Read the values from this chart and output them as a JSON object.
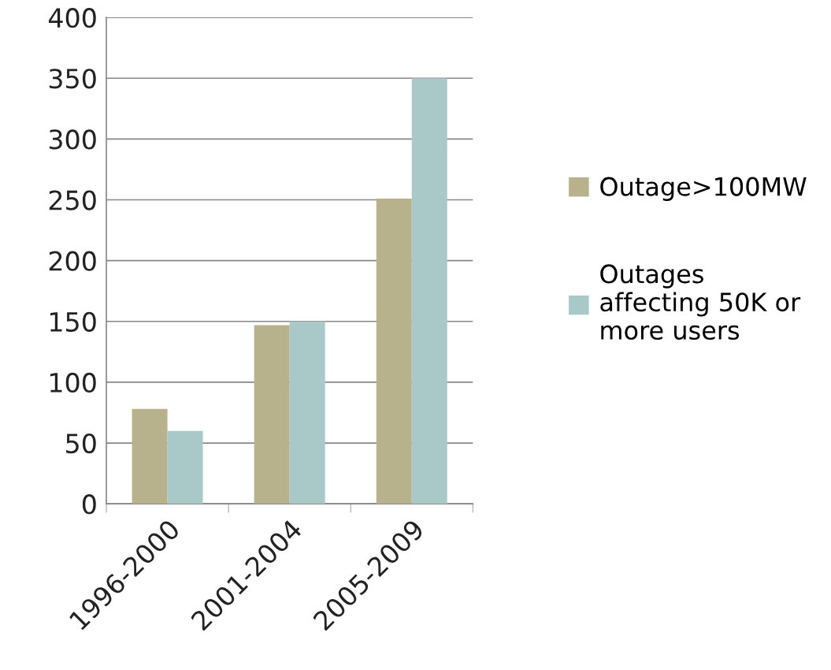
{
  "chart_data": {
    "type": "bar",
    "categories": [
      "1996-2000",
      "2001-2004",
      "2005-2009"
    ],
    "series": [
      {
        "name": "Outage>100MW",
        "color": "#b8b28c",
        "values": [
          78,
          147,
          251
        ]
      },
      {
        "name": "Outages\naffecting 50K or\nmore users",
        "color": "#a9c9c9",
        "values": [
          60,
          150,
          350
        ]
      }
    ],
    "ylim": [
      0,
      400
    ],
    "yticks": [
      0,
      50,
      100,
      150,
      200,
      250,
      300,
      350,
      400
    ],
    "grid": "y",
    "legend": "right"
  }
}
